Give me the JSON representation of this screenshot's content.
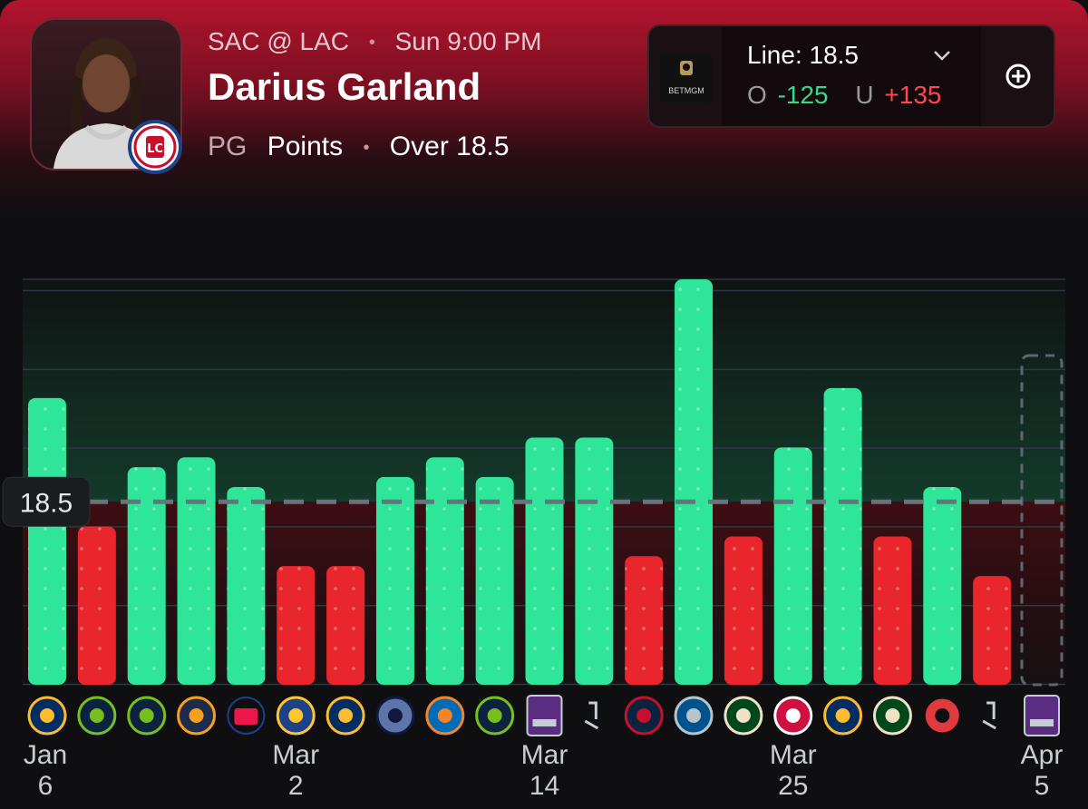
{
  "header": {
    "matchup": "SAC @ LAC",
    "game_time": "Sun 9:00 PM",
    "player_name": "Darius Garland",
    "position": "PG",
    "stat": "Points",
    "pick": "Over 18.5"
  },
  "odds": {
    "sportsbook": "BETMGM",
    "line_label": "Line: 18.5",
    "over_prefix": "O",
    "over_odds": "-125",
    "under_prefix": "U",
    "under_odds": "+135"
  },
  "colors": {
    "over": "#2fe59a",
    "under": "#e8262b",
    "over_text": "#35d98a",
    "under_text": "#ff4752"
  },
  "chart_data": {
    "type": "bar",
    "line": 18.5,
    "ylim": [
      0,
      41
    ],
    "categories": [
      "Jan 6",
      "",
      "",
      "",
      "",
      "Mar 2",
      "",
      "",
      "",
      "",
      "Mar 14",
      "",
      "",
      "",
      "",
      "Mar 25",
      "",
      "",
      "",
      "",
      "Apr 5"
    ],
    "x_labels": [
      {
        "index": 0,
        "month": "Jan",
        "day": "6"
      },
      {
        "index": 5,
        "month": "Mar",
        "day": "2"
      },
      {
        "index": 10,
        "month": "Mar",
        "day": "14"
      },
      {
        "index": 15,
        "month": "Mar",
        "day": "25"
      },
      {
        "index": 20,
        "month": "Apr",
        "day": "5"
      }
    ],
    "values": [
      29,
      16,
      22,
      23,
      20,
      12,
      12,
      21,
      23,
      21,
      25,
      25,
      13,
      41,
      15,
      24,
      30,
      15,
      20,
      11,
      null
    ],
    "opponents": [
      "pacers",
      "timberwolves",
      "timberwolves",
      "jazz",
      "76ers",
      "warriors",
      "pacers",
      "grizzlies",
      "knicks",
      "timberwolves",
      "kings",
      "spurs",
      "pelicans",
      "mavericks",
      "bucks",
      "raptors",
      "pacers",
      "bucks",
      "trail-blazers",
      "spurs",
      "kings"
    ],
    "line_label": "18.5",
    "grid": true
  }
}
